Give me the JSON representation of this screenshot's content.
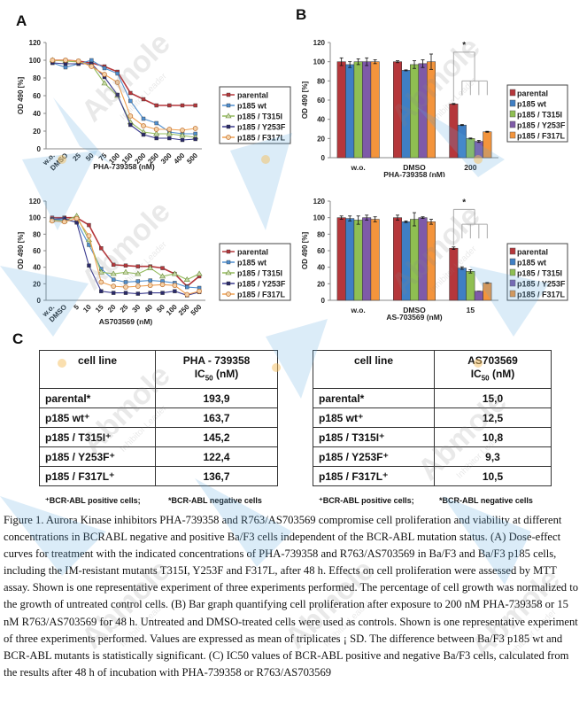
{
  "panels": {
    "A": "A",
    "B": "B",
    "C": "C"
  },
  "colors": {
    "parental": "#b5373b",
    "p185_wt": "#3f7fc4",
    "T315I": "#8fbf52",
    "Y253F": "#7e5aa8",
    "F317L": "#f3943c",
    "line_wt": "#4f8fd0",
    "line_T315I": "#93bb5c",
    "line_Y253F": "#3b3b8f",
    "line_F317L": "#f0a050"
  },
  "legend": [
    "parental",
    "p185 wt",
    "p185 / T315I",
    "p185 / Y253F",
    "p185 / F317L"
  ],
  "chart_data": [
    {
      "id": "A-top",
      "type": "line",
      "xlabel": "PHA-739358 (nM)",
      "ylabel": "OD 490 [%]",
      "ylim": [
        0,
        120
      ],
      "yticks": [
        "0",
        "20",
        "40",
        "60",
        "80",
        "100",
        "120"
      ],
      "categories": [
        "w.o.",
        "DMSO",
        "25",
        "50",
        "75",
        "100",
        "150",
        "200",
        "250",
        "300",
        "400",
        "500"
      ],
      "series": [
        {
          "name": "parental",
          "values": [
            100,
            100,
            99,
            97,
            93,
            87,
            63,
            56,
            49,
            49,
            49,
            49
          ]
        },
        {
          "name": "p185 wt",
          "values": [
            97,
            92,
            96,
            100,
            91,
            85,
            54,
            34,
            29,
            19,
            17,
            17
          ]
        },
        {
          "name": "p185 / T315I",
          "values": [
            100,
            99,
            98,
            95,
            74,
            60,
            30,
            19,
            17,
            17,
            15,
            13
          ]
        },
        {
          "name": "p185 / Y253F",
          "values": [
            97,
            96,
            96,
            96,
            81,
            61,
            27,
            16,
            12,
            12,
            10,
            11
          ]
        },
        {
          "name": "p185 / F317L",
          "values": [
            100,
            100,
            99,
            93,
            84,
            75,
            37,
            26,
            22,
            22,
            21,
            23
          ]
        }
      ],
      "legend_position": "right"
    },
    {
      "id": "B-top",
      "type": "bar",
      "xlabel": "PHA-739358 (nM)",
      "ylabel": "OD 490 [%]",
      "ylim": [
        0,
        120
      ],
      "yticks": [
        "0",
        "20",
        "40",
        "60",
        "80",
        "100",
        "120"
      ],
      "categories": [
        "w.o.",
        "DMSO",
        "200"
      ],
      "series": [
        {
          "name": "parental",
          "values": [
            100,
            100,
            56
          ],
          "errors": [
            4,
            1,
            0.5
          ]
        },
        {
          "name": "p185 wt",
          "values": [
            97,
            91,
            34
          ],
          "errors": [
            3,
            0.5,
            0.5
          ]
        },
        {
          "name": "p185 / T315I",
          "values": [
            100,
            97,
            20
          ],
          "errors": [
            3,
            4,
            0.5
          ]
        },
        {
          "name": "p185 / Y253F",
          "values": [
            100,
            98,
            17
          ],
          "errors": [
            4,
            4,
            1
          ]
        },
        {
          "name": "p185 / F317L",
          "values": [
            100,
            100,
            27
          ],
          "errors": [
            2,
            8,
            0.5
          ]
        }
      ],
      "annotation": "*",
      "legend_position": "right"
    },
    {
      "id": "A-bottom",
      "type": "line",
      "xlabel": "AS703569 (nM)",
      "ylabel": "OD 490 [%]",
      "ylim": [
        0,
        120
      ],
      "yticks": [
        "0",
        "20",
        "40",
        "60",
        "80",
        "100",
        "120"
      ],
      "categories": [
        "w.o.",
        "DMSO",
        "5",
        "10",
        "15",
        "20",
        "25",
        "30",
        "40",
        "50",
        "100",
        "250",
        "500"
      ],
      "series": [
        {
          "name": "parental",
          "values": [
            100,
            100,
            100,
            91,
            63,
            43,
            42,
            41,
            41,
            39,
            32,
            17,
            29
          ]
        },
        {
          "name": "p185 wt",
          "values": [
            98,
            97,
            95,
            67,
            38,
            25,
            22,
            23,
            24,
            23,
            21,
            16,
            15
          ]
        },
        {
          "name": "p185 / T315I",
          "values": [
            97,
            96,
            102,
            73,
            34,
            32,
            34,
            32,
            39,
            29,
            32,
            25,
            32
          ]
        },
        {
          "name": "p185 / Y253F",
          "values": [
            98,
            99,
            94,
            42,
            11,
            9,
            9,
            8,
            9,
            9,
            11,
            6,
            10
          ]
        },
        {
          "name": "p185 / F317L",
          "values": [
            96,
            95,
            99,
            78,
            22,
            17,
            16,
            17,
            18,
            19,
            18,
            7,
            11
          ]
        }
      ],
      "legend_position": "right"
    },
    {
      "id": "B-bottom",
      "type": "bar",
      "xlabel": "AS-703569 (nM)",
      "ylabel": "OD 490 [%]",
      "ylim": [
        0,
        120
      ],
      "yticks": [
        "0",
        "20",
        "40",
        "60",
        "80",
        "100",
        "120"
      ],
      "categories": [
        "w.o.",
        "DMSO",
        "15"
      ],
      "series": [
        {
          "name": "parental",
          "values": [
            100,
            100,
            63
          ],
          "errors": [
            2,
            3,
            1.5
          ]
        },
        {
          "name": "p185 wt",
          "values": [
            99,
            95,
            39
          ],
          "errors": [
            3,
            1,
            1.5
          ]
        },
        {
          "name": "p185 / T315I",
          "values": [
            97,
            98,
            35
          ],
          "errors": [
            5,
            8,
            2
          ]
        },
        {
          "name": "p185 / Y253F",
          "values": [
            100,
            100,
            11
          ],
          "errors": [
            3,
            1,
            0
          ]
        },
        {
          "name": "p185 / F317L",
          "values": [
            98,
            95,
            21
          ],
          "errors": [
            3,
            3,
            0.5
          ]
        }
      ],
      "annotation": "*",
      "legend_position": "right"
    }
  ],
  "table_pha": {
    "header_col1": "cell line",
    "header_col2_line1": "PHA - 739358",
    "header_col2_ic": "IC",
    "header_col2_sub": "50",
    "header_col2_unit": " (nM)",
    "rows": [
      {
        "name": "parental*",
        "value": "193,9"
      },
      {
        "name": "p185 wt⁺",
        "value": "163,7"
      },
      {
        "name": "p185 / T315I⁺",
        "value": "145,2"
      },
      {
        "name": "p185 / Y253F⁺",
        "value": "122,4"
      },
      {
        "name": "p185 / F317L⁺",
        "value": "136,7"
      }
    ]
  },
  "table_as": {
    "header_col1": "cell line",
    "header_col2_line1": "AS703569",
    "header_col2_ic": "IC",
    "header_col2_sub": "50",
    "header_col2_unit": " (nM)",
    "rows": [
      {
        "name": "parental*",
        "value": "15,0"
      },
      {
        "name": "p185 wt⁺",
        "value": "12,5"
      },
      {
        "name": "p185 / T315I⁺",
        "value": "10,8"
      },
      {
        "name": "p185 / Y253F⁺",
        "value": "9,3"
      },
      {
        "name": "p185 / F317L⁺",
        "value": "10,5"
      }
    ]
  },
  "footnotes": {
    "left_pos": "⁺BCR-ABL positive cells;",
    "left_neg": "*BCR-ABL negative cells",
    "right_pos": "⁺BCR-ABL positive cells;",
    "right_neg": "*BCR-ABL negative cells"
  },
  "caption": "Figure 1. Aurora Kinase inhibitors PHA-739358 and R763/AS703569 compromise cell proliferation and viability at different concentrations in BCRABL negative and positive Ba/F3 cells independent of the BCR-ABL mutation status. (A) Dose-effect curves for treatment with the indicated concentrations of PHA-739358 and R763/AS703569 in Ba/F3 and Ba/F3 p185 cells, including the IM-resistant mutants T315I, Y253F and F317L, after 48 h. Effects on cell proliferation were assessed by MTT assay. Shown is one representative experiment of three experiments performed. The percentage of cell growth was normalized to the growth of untreated control cells. (B) Bar graph quantifying cell proliferation after exposure to 200 nM PHA-739358 or 15 nM R763/AS703569 for 48 h. Untreated and DMSO-treated cells were used as controls. Shown is one representative experiment of three experiments performed. Values are expressed as mean of triplicates ¡ SD. The difference between Ba/F3 p185 wt and BCR-ABL mutants is statistically significant. (C) IC50 values of BCR-ABL positive and negative Ba/F3 cells, calculated from the results after 48 h of incubation with PHA-739358 or R763/AS703569",
  "watermark": {
    "brand": "Abmole",
    "tagline": "Inhibitor Leader"
  }
}
